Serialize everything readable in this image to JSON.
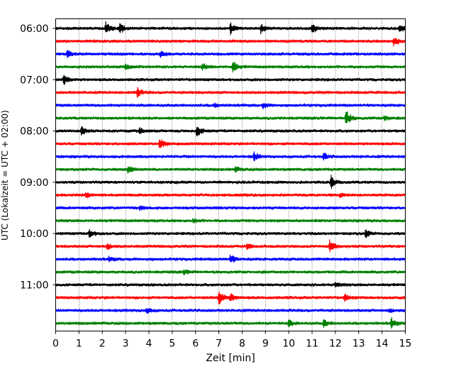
{
  "chart_data": {
    "type": "line",
    "title": "",
    "xlabel": "Zeit  [min]",
    "ylabel": "UTC (Lokalzeit = UTC + 02:00)",
    "xlim": [
      0,
      15
    ],
    "x_ticks": [
      0,
      1,
      2,
      3,
      4,
      5,
      6,
      7,
      8,
      9,
      10,
      11,
      12,
      13,
      14,
      15
    ],
    "y_tick_labels": [
      "06:00",
      "07:00",
      "08:00",
      "09:00",
      "10:00",
      "11:00"
    ],
    "y_tick_row_indices": [
      0,
      4,
      8,
      12,
      16,
      20
    ],
    "grid": "vertical dotted",
    "legend": "none",
    "colors": [
      "#000000",
      "#ff0000",
      "#0000ff",
      "#008000"
    ],
    "series": [
      {
        "start": "06:00",
        "color": "#000000",
        "events": [
          [
            2.15,
            1.0
          ],
          [
            2.75,
            0.9
          ],
          [
            7.5,
            0.8
          ],
          [
            8.8,
            0.7
          ],
          [
            11.0,
            0.9
          ],
          [
            14.75,
            0.6
          ]
        ]
      },
      {
        "start": "06:15",
        "color": "#ff0000",
        "events": [
          [
            14.5,
            0.7
          ]
        ]
      },
      {
        "start": "06:30",
        "color": "#0000ff",
        "events": [
          [
            0.5,
            0.6
          ],
          [
            4.5,
            0.5
          ]
        ]
      },
      {
        "start": "06:45",
        "color": "#008000",
        "events": [
          [
            3.0,
            0.4
          ],
          [
            6.3,
            0.5
          ],
          [
            7.6,
            0.9
          ]
        ]
      },
      {
        "start": "07:00",
        "color": "#000000",
        "events": [
          [
            0.35,
            0.7
          ]
        ]
      },
      {
        "start": "07:15",
        "color": "#ff0000",
        "events": [
          [
            3.5,
            0.8
          ]
        ]
      },
      {
        "start": "07:30",
        "color": "#0000ff",
        "events": [
          [
            6.8,
            0.3
          ],
          [
            8.9,
            0.5
          ]
        ]
      },
      {
        "start": "07:45",
        "color": "#008000",
        "events": [
          [
            12.45,
            1.4
          ],
          [
            14.1,
            0.4
          ]
        ]
      },
      {
        "start": "08:00",
        "color": "#000000",
        "events": [
          [
            1.1,
            0.8
          ],
          [
            3.6,
            0.5
          ],
          [
            6.05,
            0.9
          ]
        ]
      },
      {
        "start": "08:15",
        "color": "#ff0000",
        "events": [
          [
            4.45,
            1.0
          ]
        ]
      },
      {
        "start": "08:30",
        "color": "#0000ff",
        "events": [
          [
            8.5,
            0.7
          ],
          [
            11.5,
            0.5
          ]
        ]
      },
      {
        "start": "08:45",
        "color": "#008000",
        "events": [
          [
            3.1,
            0.6
          ],
          [
            7.7,
            0.4
          ]
        ]
      },
      {
        "start": "09:00",
        "color": "#000000",
        "events": [
          [
            11.8,
            1.1
          ]
        ]
      },
      {
        "start": "09:15",
        "color": "#ff0000",
        "events": [
          [
            1.3,
            0.4
          ],
          [
            12.2,
            0.3
          ]
        ]
      },
      {
        "start": "09:30",
        "color": "#0000ff",
        "events": [
          [
            3.6,
            0.3
          ]
        ]
      },
      {
        "start": "09:45",
        "color": "#008000",
        "events": [
          [
            5.9,
            0.3
          ]
        ]
      },
      {
        "start": "10:00",
        "color": "#000000",
        "events": [
          [
            1.45,
            0.6
          ],
          [
            13.3,
            0.6
          ]
        ]
      },
      {
        "start": "10:15",
        "color": "#ff0000",
        "events": [
          [
            2.2,
            0.5
          ],
          [
            8.2,
            0.4
          ],
          [
            11.75,
            1.0
          ]
        ]
      },
      {
        "start": "10:30",
        "color": "#0000ff",
        "events": [
          [
            7.5,
            0.7
          ],
          [
            2.3,
            0.4
          ]
        ]
      },
      {
        "start": "10:45",
        "color": "#008000",
        "events": [
          [
            5.5,
            0.3
          ]
        ]
      },
      {
        "start": "11:00",
        "color": "#000000",
        "events": [
          [
            12.0,
            0.4
          ]
        ]
      },
      {
        "start": "11:15",
        "color": "#ff0000",
        "events": [
          [
            7.0,
            1.2
          ],
          [
            7.5,
            0.6
          ],
          [
            12.4,
            0.5
          ]
        ]
      },
      {
        "start": "11:30",
        "color": "#0000ff",
        "events": [
          [
            3.9,
            0.4
          ],
          [
            14.3,
            0.3
          ]
        ]
      },
      {
        "start": "11:45",
        "color": "#008000",
        "events": [
          [
            10.0,
            0.5
          ],
          [
            11.5,
            0.6
          ],
          [
            14.4,
            0.8
          ]
        ]
      }
    ]
  }
}
